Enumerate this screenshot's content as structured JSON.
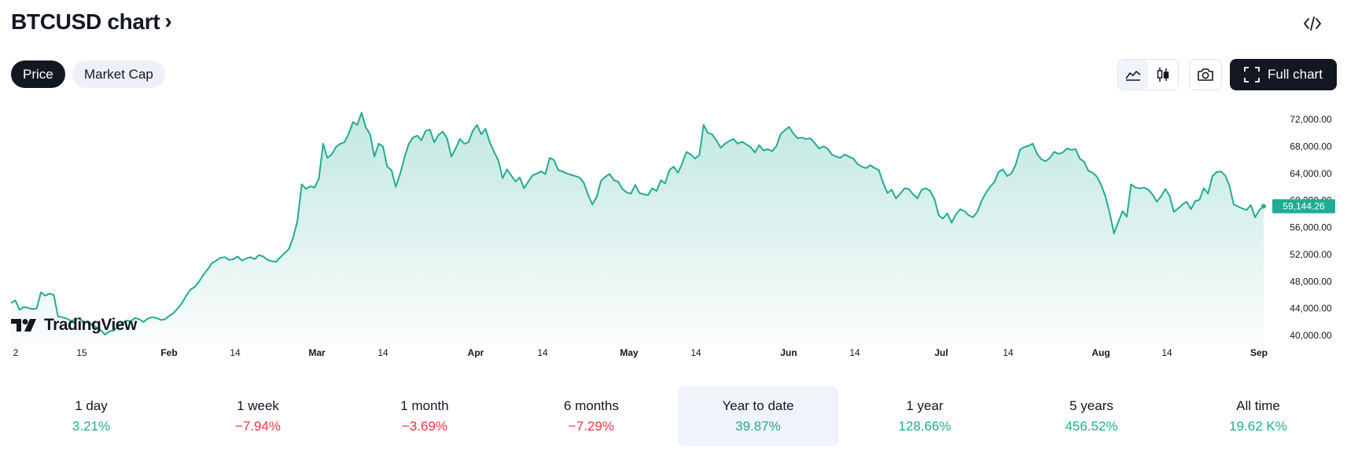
{
  "header": {
    "title": "BTCUSD chart",
    "chevron": "›",
    "embed_icon": "code-embed-icon"
  },
  "tabs": [
    {
      "label": "Price",
      "active": true
    },
    {
      "label": "Market Cap",
      "active": false
    }
  ],
  "toolbar": {
    "area_chart_icon": "area-chart-icon",
    "candles_icon": "candlestick-icon",
    "snapshot_icon": "camera-icon",
    "full_chart_label": "Full chart",
    "full_chart_icon": "fullscreen-icon"
  },
  "watermark": "TradingView",
  "colors": {
    "line": "#22ab94",
    "positive": "#22ab94",
    "negative": "#f23645",
    "dark": "#131722"
  },
  "chart_data": {
    "type": "area",
    "series": [
      {
        "values": [
          44800,
          45200,
          43800,
          44200,
          44100,
          43900,
          44000,
          46400,
          45900,
          46200,
          46000,
          42800,
          42700,
          42500,
          42200,
          42300,
          42600,
          41900,
          42100,
          41500,
          41200,
          40800,
          40100,
          40600,
          40700,
          41300,
          41800,
          42200,
          42100,
          42600,
          42400,
          42000,
          42500,
          42700,
          42600,
          42300,
          42400,
          42900,
          43300,
          44000,
          44800,
          45900,
          46800,
          47200,
          48000,
          49000,
          49800,
          50700,
          51100,
          51500,
          51600,
          51200,
          51300,
          51700,
          51100,
          51400,
          51600,
          51300,
          51900,
          51700,
          51200,
          51000,
          50900,
          51600,
          52200,
          52800,
          54500,
          57000,
          62400,
          61700,
          62100,
          61900,
          63200,
          68400,
          66300,
          66800,
          67900,
          68400,
          68600,
          69900,
          71600,
          71200,
          73000,
          70800,
          69800,
          66500,
          68400,
          68000,
          65000,
          64500,
          62000,
          63900,
          66300,
          68300,
          69300,
          69600,
          68900,
          70300,
          70500,
          68600,
          69700,
          70200,
          69200,
          66500,
          67700,
          69100,
          68400,
          68600,
          70300,
          71200,
          69800,
          70600,
          68600,
          67200,
          65900,
          63300,
          64600,
          63700,
          62800,
          63400,
          61800,
          62800,
          63700,
          64000,
          64300,
          63900,
          66300,
          66000,
          64500,
          64300,
          64000,
          63800,
          63600,
          63400,
          62600,
          60800,
          59400,
          60500,
          62900,
          63500,
          63900,
          63000,
          62800,
          61700,
          61200,
          61000,
          62300,
          61100,
          60900,
          60800,
          61800,
          61400,
          63000,
          62500,
          64500,
          65000,
          64100,
          65500,
          67200,
          66800,
          66200,
          66700,
          71200,
          70000,
          69800,
          68900,
          67800,
          68400,
          68800,
          69100,
          68400,
          68700,
          68300,
          67900,
          67100,
          68200,
          67400,
          67600,
          67300,
          68000,
          69800,
          70400,
          70900,
          69900,
          69200,
          69300,
          69100,
          69200,
          68500,
          67700,
          68000,
          67700,
          66800,
          66500,
          66300,
          66800,
          66500,
          66200,
          65400,
          65000,
          64800,
          65200,
          64800,
          64500,
          62600,
          61100,
          61600,
          60300,
          61000,
          61800,
          61700,
          60900,
          60300,
          61600,
          61800,
          61400,
          60200,
          57800,
          57300,
          58100,
          56700,
          57900,
          58700,
          58400,
          57800,
          57500,
          58300,
          59900,
          61100,
          62000,
          62700,
          64200,
          64600,
          63600,
          64000,
          65300,
          67500,
          67900,
          68100,
          68400,
          66900,
          66100,
          65800,
          66300,
          67200,
          66900,
          67100,
          67700,
          67500,
          67600,
          66200,
          65700,
          64400,
          64100,
          63500,
          62300,
          60600,
          58100,
          55100,
          56800,
          58400,
          57600,
          62400,
          61900,
          61800,
          61900,
          61600,
          60900,
          59800,
          60600,
          61700,
          60700,
          58300,
          58800,
          59400,
          59800,
          58700,
          59900,
          60100,
          61800,
          61000,
          63600,
          64200,
          64300,
          63700,
          62200,
          59400,
          59100,
          58800,
          58600,
          59300,
          57500,
          58600,
          59144
        ],
        "last_value": 59144.26,
        "last_label": "59,144.26"
      }
    ],
    "x_ticks": [
      {
        "label": "2",
        "bold": false
      },
      {
        "label": "15",
        "bold": false
      },
      {
        "label": "Feb",
        "bold": true
      },
      {
        "label": "14",
        "bold": false
      },
      {
        "label": "Mar",
        "bold": true
      },
      {
        "label": "14",
        "bold": false
      },
      {
        "label": "Apr",
        "bold": true
      },
      {
        "label": "14",
        "bold": false
      },
      {
        "label": "May",
        "bold": true
      },
      {
        "label": "14",
        "bold": false
      },
      {
        "label": "Jun",
        "bold": true
      },
      {
        "label": "14",
        "bold": false
      },
      {
        "label": "Jul",
        "bold": true
      },
      {
        "label": "14",
        "bold": false
      },
      {
        "label": "Aug",
        "bold": true
      },
      {
        "label": "14",
        "bold": false
      },
      {
        "label": "Sep",
        "bold": true
      }
    ],
    "y_ticks": [
      "72,000.00",
      "68,000.00",
      "64,000.00",
      "60,000.00",
      "56,000.00",
      "52,000.00",
      "48,000.00",
      "44,000.00",
      "40,000.00"
    ],
    "ylim": [
      40000,
      72000
    ],
    "grid": false
  },
  "periods": [
    {
      "label": "1 day",
      "value": "3.21%",
      "sign": "pos",
      "selected": false
    },
    {
      "label": "1 week",
      "value": "−7.94%",
      "sign": "neg",
      "selected": false
    },
    {
      "label": "1 month",
      "value": "−3.69%",
      "sign": "neg",
      "selected": false
    },
    {
      "label": "6 months",
      "value": "−7.29%",
      "sign": "neg",
      "selected": false
    },
    {
      "label": "Year to date",
      "value": "39.87%",
      "sign": "pos",
      "selected": true
    },
    {
      "label": "1 year",
      "value": "128.66%",
      "sign": "pos",
      "selected": false
    },
    {
      "label": "5 years",
      "value": "456.52%",
      "sign": "pos",
      "selected": false
    },
    {
      "label": "All time",
      "value": "19.62 K%",
      "sign": "pos",
      "selected": false
    }
  ]
}
